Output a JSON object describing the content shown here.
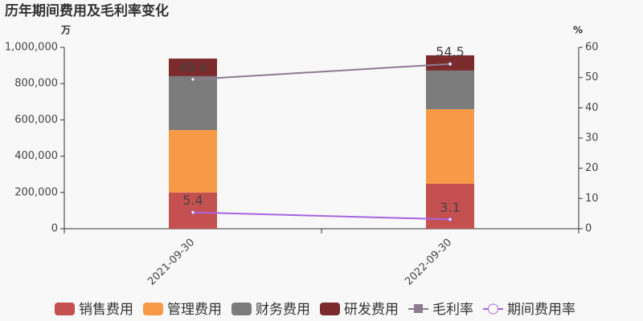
{
  "chart_data": {
    "type": "bar",
    "stacked": true,
    "title": "历年期间费用及毛利率变化",
    "y_unit": "万",
    "y2_unit": "%",
    "categories": [
      "2021-09-30",
      "2022-09-30"
    ],
    "series": [
      {
        "name": "销售费用",
        "type": "bar",
        "color": "#c4504f",
        "values": [
          200000,
          248000
        ]
      },
      {
        "name": "管理费用",
        "type": "bar",
        "color": "#f79a48",
        "values": [
          344000,
          411000
        ]
      },
      {
        "name": "财务费用",
        "type": "bar",
        "color": "#7b7b7b",
        "values": [
          297000,
          213000
        ]
      },
      {
        "name": "研发费用",
        "type": "bar",
        "color": "#7b2b2b",
        "values": [
          97000,
          84000
        ]
      },
      {
        "name": "毛利率",
        "type": "line",
        "axis": "y2",
        "color": "#8e7a90",
        "marker": "square",
        "values": [
          49.4,
          54.5
        ]
      },
      {
        "name": "期间费用率",
        "type": "line",
        "axis": "y2",
        "color": "#a864e0",
        "marker": "circle",
        "values": [
          5.4,
          3.1
        ]
      }
    ],
    "ylim": [
      0,
      1000000
    ],
    "yticks": [
      0,
      {
        "value": 200000,
        "label": "200,000"
      },
      {
        "value": 400000,
        "label": "400,000"
      },
      {
        "value": 600000,
        "label": "600,000"
      },
      {
        "value": 800000,
        "label": "800,000"
      },
      {
        "value": 1000000,
        "label": "1,000,000"
      }
    ],
    "y2lim": [
      0,
      60
    ],
    "y2ticks": [
      0,
      10,
      20,
      30,
      40,
      50,
      60
    ],
    "legend": "bottom"
  }
}
